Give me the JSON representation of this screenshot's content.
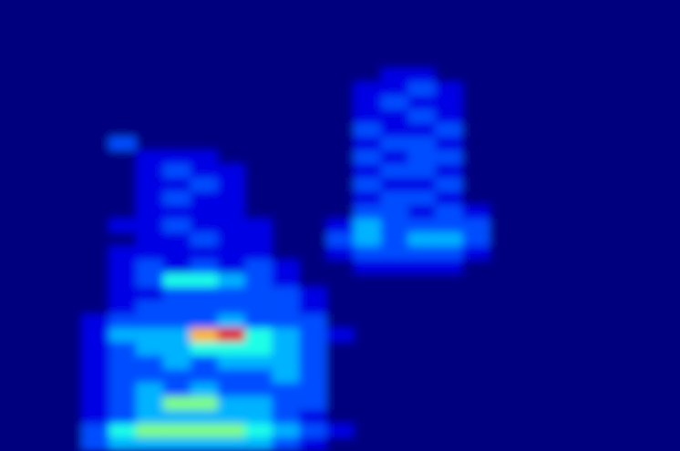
{
  "chart_data": {
    "type": "heatmap",
    "color": "jet",
    "zlim": [
      0,
      10
    ],
    "z": [
      [
        0,
        0,
        0,
        0,
        0,
        0,
        0,
        0,
        0,
        0,
        0,
        0,
        0,
        0,
        0,
        0,
        0,
        0,
        0,
        0,
        0,
        0,
        0,
        0,
        0
      ],
      [
        0,
        0,
        0,
        0,
        0,
        0,
        0,
        0,
        0,
        0,
        0,
        0,
        0,
        0,
        0,
        0,
        0,
        0,
        0,
        0,
        0,
        0,
        0,
        0,
        0
      ],
      [
        0,
        0,
        0,
        0,
        0,
        0,
        0,
        0,
        0,
        0,
        0,
        0,
        0,
        0,
        0,
        0,
        0,
        0,
        0,
        0,
        0,
        0,
        0,
        0,
        0
      ],
      [
        0,
        0,
        0,
        0,
        0,
        0,
        0,
        0,
        0,
        0,
        0,
        0,
        0,
        0,
        0,
        0,
        0,
        0,
        0,
        0,
        0,
        0,
        0,
        0,
        0
      ],
      [
        0,
        0,
        0,
        0,
        0,
        0,
        0,
        0,
        0,
        0,
        0,
        0,
        0,
        0,
        0,
        0,
        0,
        0,
        0,
        0,
        0,
        0,
        0,
        0,
        0
      ],
      [
        0,
        0,
        0,
        0,
        0,
        0,
        0,
        0,
        0,
        0,
        0,
        0,
        0,
        0,
        1,
        1,
        0,
        0,
        0,
        0,
        0,
        0,
        0,
        0,
        0
      ],
      [
        0,
        0,
        0,
        0,
        0,
        0,
        0,
        0,
        0,
        0,
        0,
        0,
        0,
        1,
        1,
        2,
        1,
        0,
        0,
        0,
        0,
        0,
        0,
        0,
        0
      ],
      [
        0,
        0,
        0,
        0,
        0,
        0,
        0,
        0,
        0,
        0,
        0,
        0,
        0,
        1,
        2,
        1,
        1,
        0,
        0,
        0,
        0,
        0,
        0,
        0,
        0
      ],
      [
        0,
        0,
        0,
        0,
        0,
        0,
        0,
        0,
        0,
        0,
        0,
        0,
        0,
        1,
        1,
        2,
        1,
        0,
        0,
        0,
        0,
        0,
        0,
        0,
        0
      ],
      [
        0,
        0,
        0,
        0,
        0,
        0,
        0,
        0,
        0,
        0,
        0,
        0,
        0,
        2,
        1,
        1,
        2,
        0,
        0,
        0,
        0,
        0,
        0,
        0,
        0
      ],
      [
        0,
        0,
        0,
        0,
        2,
        0,
        0,
        0,
        0,
        0,
        0,
        0,
        0,
        1,
        2,
        2,
        1,
        0,
        0,
        0,
        0,
        0,
        0,
        0,
        0
      ],
      [
        0,
        0,
        0,
        0,
        0,
        1,
        1,
        1,
        0,
        0,
        0,
        0,
        0,
        2,
        1,
        2,
        2,
        0,
        0,
        0,
        0,
        0,
        0,
        0,
        0
      ],
      [
        0,
        0,
        0,
        0,
        0,
        1,
        2,
        1,
        1,
        0,
        0,
        0,
        0,
        1,
        2,
        2,
        1,
        0,
        0,
        0,
        0,
        0,
        0,
        0,
        0
      ],
      [
        0,
        0,
        0,
        0,
        0,
        1,
        1,
        2,
        1,
        0,
        0,
        0,
        0,
        2,
        1,
        1,
        2,
        0,
        0,
        0,
        0,
        0,
        0,
        0,
        0
      ],
      [
        0,
        0,
        0,
        0,
        0,
        1,
        2,
        1,
        1,
        0,
        0,
        0,
        0,
        1,
        2,
        2,
        1,
        0,
        0,
        0,
        0,
        0,
        0,
        0,
        0
      ],
      [
        0,
        0,
        0,
        0,
        0,
        1,
        1,
        1,
        1,
        0,
        0,
        0,
        0,
        2,
        2,
        1,
        2,
        1,
        0,
        0,
        0,
        0,
        0,
        0,
        0
      ],
      [
        0,
        0,
        0,
        0,
        1,
        1,
        2,
        1,
        1,
        1,
        0,
        0,
        1,
        3,
        2,
        2,
        2,
        2,
        0,
        0,
        0,
        0,
        0,
        0,
        0
      ],
      [
        0,
        0,
        0,
        0,
        0,
        1,
        1,
        2,
        1,
        1,
        0,
        0,
        2,
        3,
        2,
        3,
        3,
        2,
        0,
        0,
        0,
        0,
        0,
        0,
        0
      ],
      [
        0,
        0,
        0,
        0,
        1,
        1,
        1,
        1,
        1,
        1,
        0,
        0,
        1,
        2,
        2,
        2,
        2,
        1,
        0,
        0,
        0,
        0,
        0,
        0,
        0
      ],
      [
        0,
        0,
        0,
        0,
        1,
        2,
        1,
        2,
        1,
        2,
        1,
        0,
        0,
        1,
        1,
        1,
        1,
        0,
        0,
        0,
        0,
        0,
        0,
        0,
        0
      ],
      [
        0,
        0,
        0,
        0,
        1,
        2,
        4,
        4,
        3,
        2,
        1,
        0,
        0,
        0,
        0,
        0,
        0,
        0,
        0,
        0,
        0,
        0,
        0,
        0,
        0
      ],
      [
        0,
        0,
        0,
        0,
        1,
        1,
        2,
        2,
        2,
        2,
        2,
        1,
        0,
        0,
        0,
        0,
        0,
        0,
        0,
        0,
        0,
        0,
        0,
        0,
        0
      ],
      [
        0,
        0,
        0,
        0,
        1,
        2,
        2,
        2,
        2,
        2,
        2,
        1,
        0,
        0,
        0,
        0,
        0,
        0,
        0,
        0,
        0,
        0,
        0,
        0,
        0
      ],
      [
        0,
        0,
        0,
        1,
        2,
        2,
        2,
        2,
        3,
        2,
        2,
        2,
        0,
        0,
        0,
        0,
        0,
        0,
        0,
        0,
        0,
        0,
        0,
        0,
        0
      ],
      [
        0,
        0,
        0,
        1,
        3,
        3,
        3,
        7,
        9,
        4,
        3,
        2,
        1,
        0,
        0,
        0,
        0,
        0,
        0,
        0,
        0,
        0,
        0,
        0,
        0
      ],
      [
        0,
        0,
        0,
        1,
        2,
        3,
        3,
        4,
        4,
        4,
        3,
        2,
        0,
        0,
        0,
        0,
        0,
        0,
        0,
        0,
        0,
        0,
        0,
        0,
        0
      ],
      [
        0,
        0,
        0,
        1,
        2,
        2,
        3,
        2,
        3,
        3,
        3,
        2,
        0,
        0,
        0,
        0,
        0,
        0,
        0,
        0,
        0,
        0,
        0,
        0,
        0
      ],
      [
        0,
        0,
        0,
        1,
        2,
        2,
        2,
        2,
        2,
        2,
        3,
        2,
        0,
        0,
        0,
        0,
        0,
        0,
        0,
        0,
        0,
        0,
        0,
        0,
        0
      ],
      [
        0,
        0,
        0,
        1,
        2,
        3,
        2,
        3,
        2,
        2,
        2,
        2,
        0,
        0,
        0,
        0,
        0,
        0,
        0,
        0,
        0,
        0,
        0,
        0,
        0
      ],
      [
        0,
        0,
        0,
        1,
        2,
        3,
        5,
        5,
        3,
        3,
        2,
        2,
        0,
        0,
        0,
        0,
        0,
        0,
        0,
        0,
        0,
        0,
        0,
        0,
        0
      ],
      [
        0,
        0,
        0,
        1,
        2,
        3,
        3,
        3,
        3,
        3,
        2,
        1,
        0,
        0,
        0,
        0,
        0,
        0,
        0,
        0,
        0,
        0,
        0,
        0,
        0
      ],
      [
        0,
        0,
        0,
        2,
        4,
        5,
        5,
        5,
        5,
        4,
        3,
        2,
        1,
        0,
        0,
        0,
        0,
        0,
        0,
        0,
        0,
        0,
        0,
        0,
        0
      ],
      [
        0,
        0,
        0,
        2,
        3,
        3,
        3,
        3,
        3,
        3,
        2,
        1,
        0,
        0,
        0,
        0,
        0,
        0,
        0,
        0,
        0,
        0,
        0,
        0,
        0
      ]
    ]
  }
}
